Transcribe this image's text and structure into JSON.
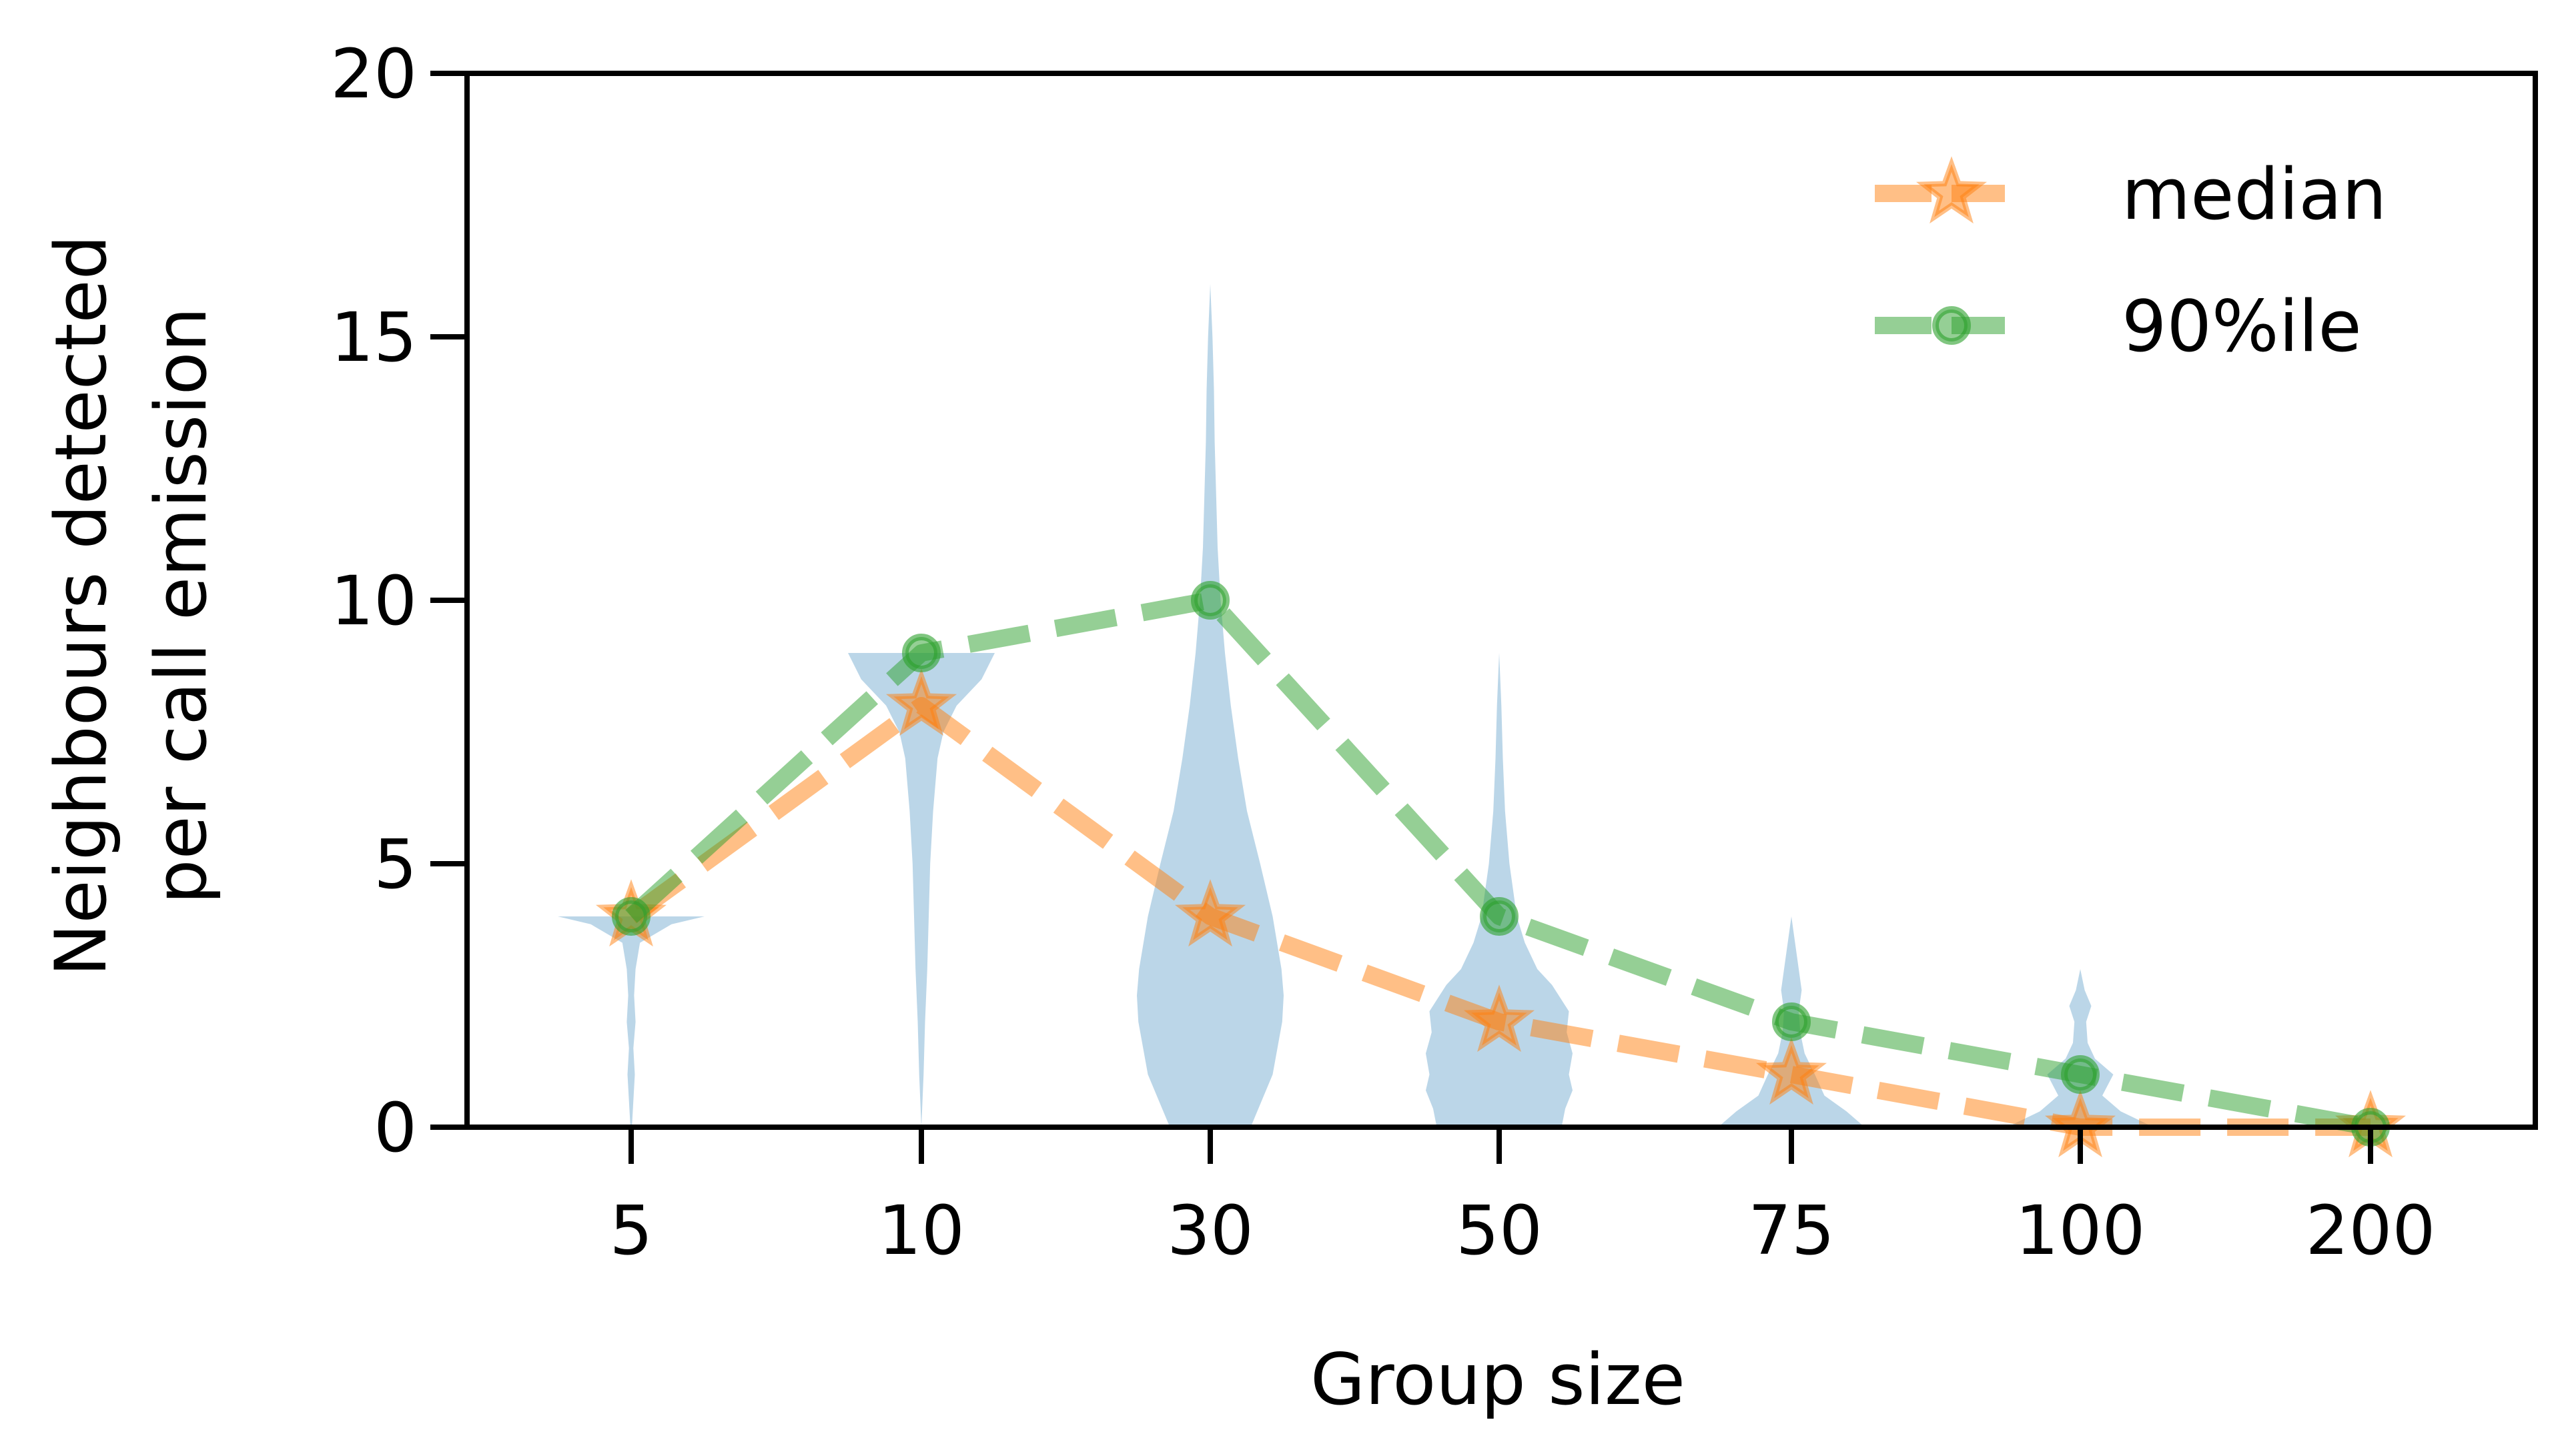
{
  "chart_data": {
    "type": "violin",
    "xlabel": "Group size",
    "ylabel_lines": [
      "Neighbours detected",
      "per call emission"
    ],
    "categories": [
      "5",
      "10",
      "30",
      "50",
      "75",
      "100",
      "200"
    ],
    "ylim": [
      0,
      20
    ],
    "yticks": [
      0,
      5,
      10,
      15,
      20
    ],
    "y_tick_labels": [
      "0",
      "5",
      "10",
      "15",
      "20"
    ],
    "grid": false,
    "legend_position": "top-right",
    "series": [
      {
        "name": "median",
        "marker": "star",
        "line_style": "dashed",
        "color": "#ff7f0e",
        "values": [
          4,
          8,
          4,
          2,
          1,
          0,
          0
        ]
      },
      {
        "name": "90%ile",
        "marker": "circle",
        "line_style": "dashed",
        "color": "#2ca02c",
        "values": [
          4,
          9,
          10,
          4,
          2,
          1,
          0
        ]
      }
    ],
    "violins": {
      "color": "#1f77b4",
      "distributions": [
        {
          "category": "5",
          "min": 0,
          "max": 4,
          "profile": [
            [
              0,
              0.01
            ],
            [
              0.5,
              0.03
            ],
            [
              1,
              0.05
            ],
            [
              1.5,
              0.03
            ],
            [
              2,
              0.06
            ],
            [
              2.5,
              0.04
            ],
            [
              3,
              0.06
            ],
            [
              3.5,
              0.12
            ],
            [
              3.85,
              0.55
            ],
            [
              4,
              1.0
            ]
          ]
        },
        {
          "category": "10",
          "min": 0,
          "max": 9,
          "profile": [
            [
              0,
              0.0
            ],
            [
              1,
              0.03
            ],
            [
              2,
              0.05
            ],
            [
              3,
              0.08
            ],
            [
              4,
              0.1
            ],
            [
              5,
              0.12
            ],
            [
              6,
              0.16
            ],
            [
              7,
              0.22
            ],
            [
              7.5,
              0.3
            ],
            [
              8,
              0.48
            ],
            [
              8.5,
              0.82
            ],
            [
              9,
              1.0
            ]
          ]
        },
        {
          "category": "30",
          "min": 0,
          "max": 16,
          "profile": [
            [
              0,
              0.55
            ],
            [
              0.5,
              0.7
            ],
            [
              1,
              0.85
            ],
            [
              2,
              0.98
            ],
            [
              2.5,
              1.0
            ],
            [
              3,
              0.97
            ],
            [
              4,
              0.85
            ],
            [
              5,
              0.68
            ],
            [
              6,
              0.5
            ],
            [
              7,
              0.38
            ],
            [
              8,
              0.28
            ],
            [
              9,
              0.2
            ],
            [
              10,
              0.14
            ],
            [
              11,
              0.1
            ],
            [
              12,
              0.08
            ],
            [
              13,
              0.06
            ],
            [
              14,
              0.05
            ],
            [
              15,
              0.03
            ],
            [
              16,
              0.0
            ]
          ]
        },
        {
          "category": "50",
          "min": 0,
          "max": 9,
          "profile": [
            [
              0,
              0.85
            ],
            [
              0.35,
              0.9
            ],
            [
              0.7,
              1.0
            ],
            [
              1,
              0.95
            ],
            [
              1.4,
              1.0
            ],
            [
              1.8,
              0.92
            ],
            [
              2.2,
              0.95
            ],
            [
              2.7,
              0.72
            ],
            [
              3,
              0.52
            ],
            [
              3.5,
              0.35
            ],
            [
              4,
              0.24
            ],
            [
              5,
              0.14
            ],
            [
              6,
              0.08
            ],
            [
              7,
              0.05
            ],
            [
              8,
              0.03
            ],
            [
              9,
              0.0
            ]
          ]
        },
        {
          "category": "75",
          "min": 0,
          "max": 4,
          "profile": [
            [
              0,
              1.0
            ],
            [
              0.3,
              0.75
            ],
            [
              0.6,
              0.45
            ],
            [
              1,
              0.32
            ],
            [
              1.4,
              0.18
            ],
            [
              1.8,
              0.12
            ],
            [
              2.2,
              0.1
            ],
            [
              2.6,
              0.14
            ],
            [
              3,
              0.1
            ],
            [
              3.4,
              0.06
            ],
            [
              4,
              0.0
            ]
          ]
        },
        {
          "category": "100",
          "min": 0,
          "max": 3,
          "profile": [
            [
              0,
              1.0
            ],
            [
              0.3,
              0.55
            ],
            [
              0.6,
              0.3
            ],
            [
              1,
              0.45
            ],
            [
              1.3,
              0.2
            ],
            [
              1.6,
              0.1
            ],
            [
              2,
              0.08
            ],
            [
              2.3,
              0.15
            ],
            [
              2.6,
              0.06
            ],
            [
              3,
              0.0
            ]
          ]
        },
        {
          "category": "200",
          "min": 0,
          "max": 0,
          "profile": []
        }
      ]
    },
    "legend": [
      {
        "label": "median",
        "marker": "star",
        "color": "#ff7f0e"
      },
      {
        "label": "90%ile",
        "marker": "circle",
        "color": "#2ca02c"
      }
    ]
  }
}
